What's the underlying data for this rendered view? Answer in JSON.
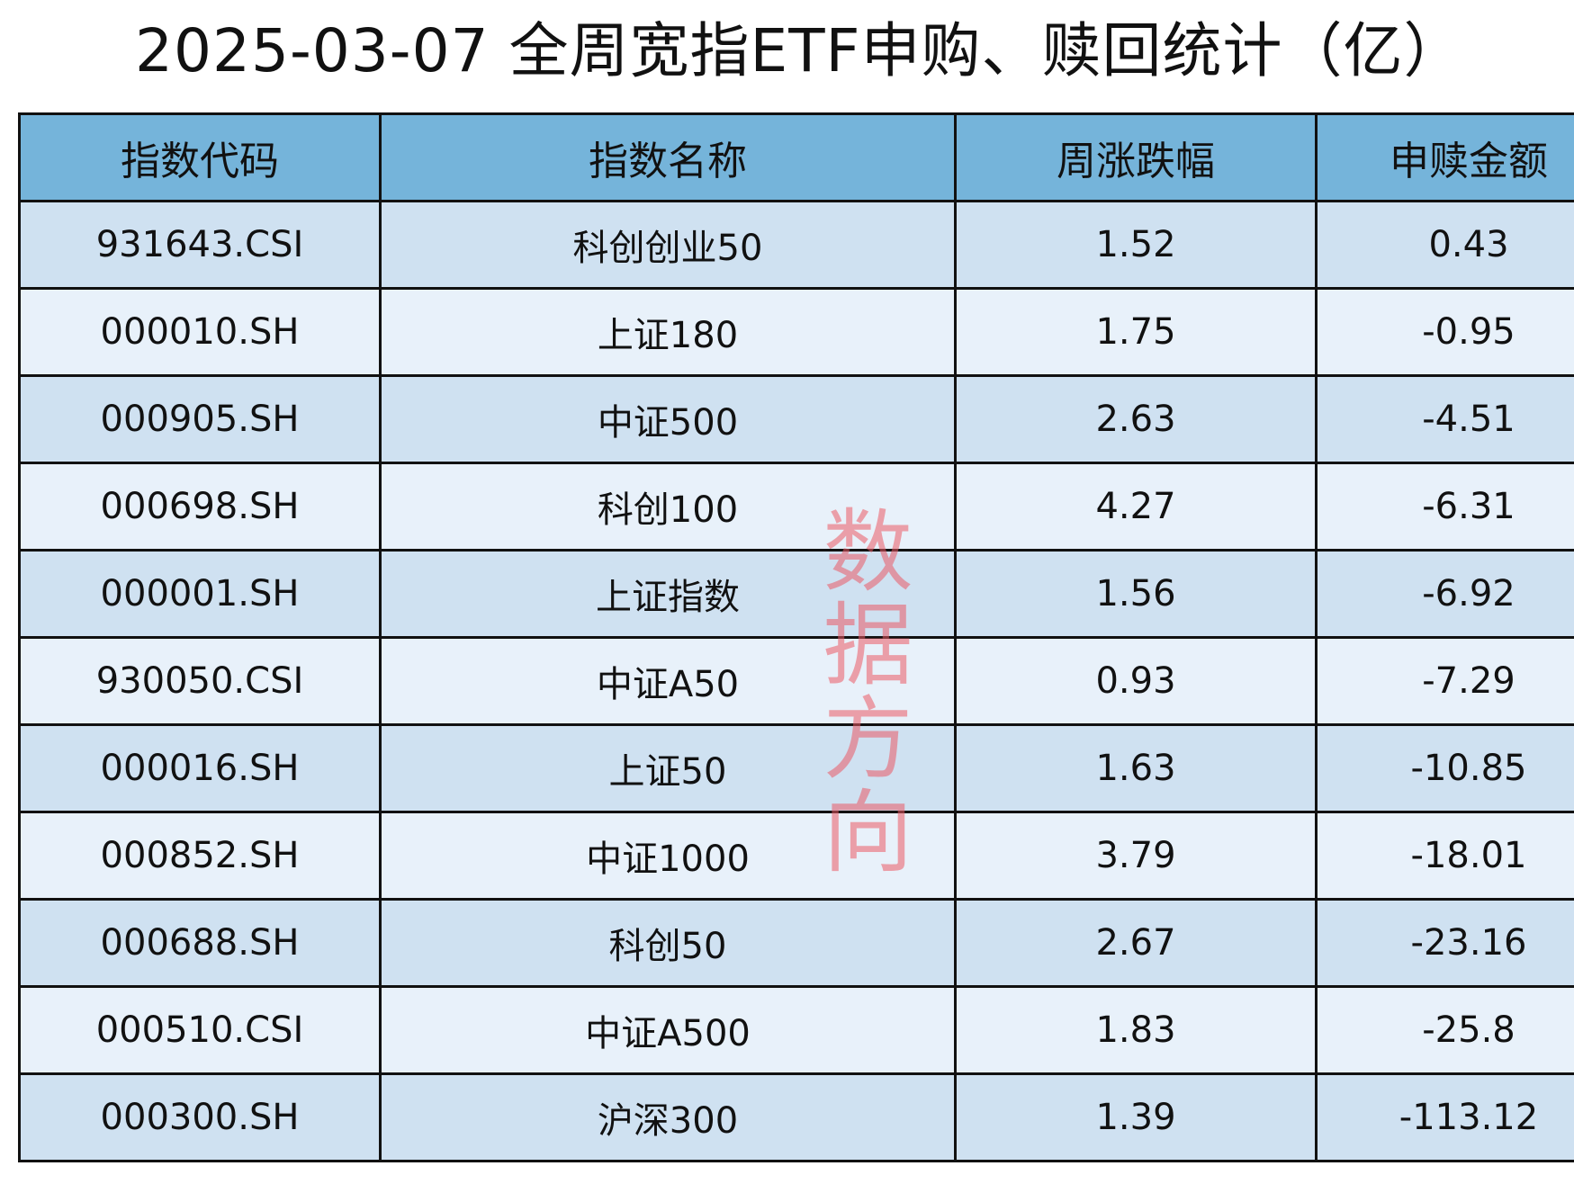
{
  "title": "2025-03-07 全周宽指ETF申购、赎回统计（亿）",
  "table": {
    "headers": [
      "指数代码",
      "指数名称",
      "周涨跌幅",
      "申赎金额"
    ],
    "rows": [
      [
        "931643.CSI",
        "科创创业50",
        "1.52",
        "0.43"
      ],
      [
        "000010.SH",
        "上证180",
        "1.75",
        "-0.95"
      ],
      [
        "000905.SH",
        "中证500",
        "2.63",
        "-4.51"
      ],
      [
        "000698.SH",
        "科创100",
        "4.27",
        "-6.31"
      ],
      [
        "000001.SH",
        "上证指数",
        "1.56",
        "-6.92"
      ],
      [
        "930050.CSI",
        "中证A50",
        "0.93",
        "-7.29"
      ],
      [
        "000016.SH",
        "上证50",
        "1.63",
        "-10.85"
      ],
      [
        "000852.SH",
        "中证1000",
        "3.79",
        "-18.01"
      ],
      [
        "000688.SH",
        "科创50",
        "2.67",
        "-23.16"
      ],
      [
        "000510.CSI",
        "中证A500",
        "1.83",
        "-25.8"
      ],
      [
        "000300.SH",
        "沪深300",
        "1.39",
        "-113.12"
      ]
    ]
  },
  "watermark": "数据方向",
  "colors": {
    "header": "#75b4da",
    "row_odd": "#cfe1f1",
    "row_even": "#e8f1fa",
    "watermark": "#eb5a64"
  }
}
